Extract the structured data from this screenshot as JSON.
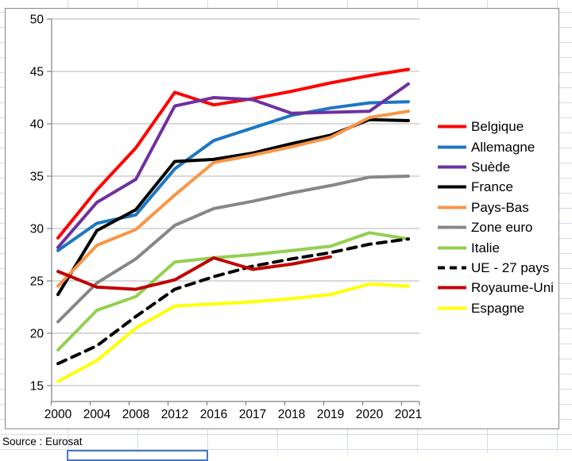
{
  "source_note": "Source : Eurosat",
  "chart_data": {
    "type": "line",
    "title": "",
    "xlabel": "",
    "ylabel": "",
    "categories": [
      "2000",
      "2004",
      "2008",
      "2012",
      "2016",
      "2017",
      "2018",
      "2019",
      "2020",
      "2021"
    ],
    "yticks": [
      50,
      45,
      40,
      35,
      30,
      25,
      20,
      15
    ],
    "ylim": [
      13.5,
      50
    ],
    "grid": true,
    "legend_position": "right",
    "axis_color": "#808080",
    "gridline_color": "#b3b3b3",
    "series": [
      {
        "name": "Belgique",
        "color": "#FF0000",
        "dashed": false,
        "values": [
          29.1,
          33.7,
          37.7,
          43.0,
          41.8,
          42.4,
          43.1,
          43.9,
          44.6,
          45.2
        ]
      },
      {
        "name": "Allemagne",
        "color": "#1B77C3",
        "dashed": false,
        "values": [
          27.9,
          30.5,
          31.3,
          35.7,
          38.4,
          39.6,
          40.8,
          41.5,
          42.0,
          42.1
        ]
      },
      {
        "name": "Suède",
        "color": "#7030A0",
        "dashed": false,
        "values": [
          28.2,
          32.5,
          34.7,
          41.7,
          42.5,
          42.3,
          41.0,
          41.1,
          41.2,
          43.8
        ]
      },
      {
        "name": "France",
        "color": "#000000",
        "dashed": false,
        "values": [
          23.7,
          29.8,
          31.8,
          36.4,
          36.6,
          37.2,
          38.1,
          38.9,
          40.4,
          40.3
        ]
      },
      {
        "name": "Pays-Bas",
        "color": "#F79646",
        "dashed": false,
        "values": [
          24.5,
          28.4,
          29.9,
          33.2,
          36.3,
          37.0,
          37.8,
          38.7,
          40.6,
          41.2
        ]
      },
      {
        "name": "Zone euro",
        "color": "#878787",
        "dashed": false,
        "values": [
          21.1,
          24.8,
          27.1,
          30.3,
          31.9,
          32.6,
          33.4,
          34.1,
          34.9,
          35.0
        ]
      },
      {
        "name": "Italie",
        "color": "#92D050",
        "dashed": false,
        "values": [
          18.4,
          22.2,
          23.5,
          26.8,
          27.2,
          27.5,
          27.9,
          28.3,
          29.6,
          29.0
        ]
      },
      {
        "name": "UE - 27 pays",
        "color": "#000000",
        "dashed": true,
        "values": [
          17.1,
          18.8,
          21.6,
          24.2,
          25.4,
          26.4,
          27.1,
          27.7,
          28.5,
          29.0
        ]
      },
      {
        "name": "Royaume-Uni",
        "color": "#C00000",
        "dashed": false,
        "values": [
          25.9,
          24.4,
          24.2,
          25.1,
          27.2,
          26.1,
          26.6,
          27.3,
          null,
          null
        ]
      },
      {
        "name": "Espagne",
        "color": "#FFFF00",
        "dashed": false,
        "values": [
          15.4,
          17.4,
          20.5,
          22.6,
          22.8,
          23.0,
          23.3,
          23.7,
          24.7,
          24.5
        ]
      }
    ]
  }
}
